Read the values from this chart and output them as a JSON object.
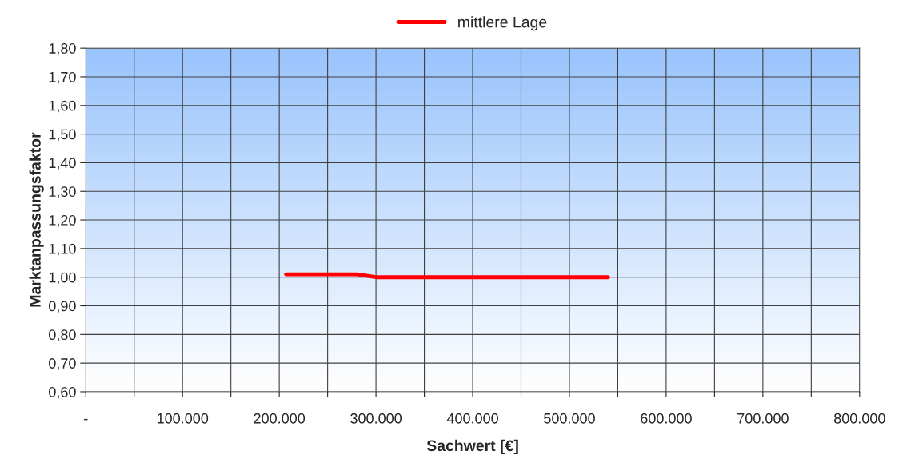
{
  "chart_data": {
    "type": "line",
    "xlabel": "Sachwert [€]",
    "ylabel": "Marktanpassungsfaktor",
    "series": [
      {
        "name": "mittlere Lage",
        "color": "#ff0000",
        "x": [
          207000,
          280000,
          300000,
          540000
        ],
        "values": [
          1.01,
          1.01,
          1.0,
          1.0
        ]
      }
    ],
    "xlim": [
      0,
      800000
    ],
    "xticks": [
      {
        "value": 0,
        "label": "-"
      },
      {
        "value": 50000,
        "label": null
      },
      {
        "value": 100000,
        "label": "100.000"
      },
      {
        "value": 150000,
        "label": null
      },
      {
        "value": 200000,
        "label": "200.000"
      },
      {
        "value": 250000,
        "label": null
      },
      {
        "value": 300000,
        "label": "300.000"
      },
      {
        "value": 350000,
        "label": null
      },
      {
        "value": 400000,
        "label": "400.000"
      },
      {
        "value": 450000,
        "label": null
      },
      {
        "value": 500000,
        "label": "500.000"
      },
      {
        "value": 550000,
        "label": null
      },
      {
        "value": 600000,
        "label": "600.000"
      },
      {
        "value": 650000,
        "label": null
      },
      {
        "value": 700000,
        "label": "700.000"
      },
      {
        "value": 750000,
        "label": null
      },
      {
        "value": 800000,
        "label": "800.000"
      }
    ],
    "ylim": [
      0.6,
      1.8
    ],
    "yticks": [
      {
        "value": 0.6,
        "label": "0,60"
      },
      {
        "value": 0.7,
        "label": "0,70"
      },
      {
        "value": 0.8,
        "label": "0,80"
      },
      {
        "value": 0.9,
        "label": "0,90"
      },
      {
        "value": 1.0,
        "label": "1,00"
      },
      {
        "value": 1.1,
        "label": "1,10"
      },
      {
        "value": 1.2,
        "label": "1,20"
      },
      {
        "value": 1.3,
        "label": "1,30"
      },
      {
        "value": 1.4,
        "label": "1,40"
      },
      {
        "value": 1.5,
        "label": "1,50"
      },
      {
        "value": 1.6,
        "label": "1,60"
      },
      {
        "value": 1.7,
        "label": "1,70"
      },
      {
        "value": 1.8,
        "label": "1,80"
      }
    ],
    "grid": true,
    "legend": "top",
    "line_style": "solid"
  }
}
